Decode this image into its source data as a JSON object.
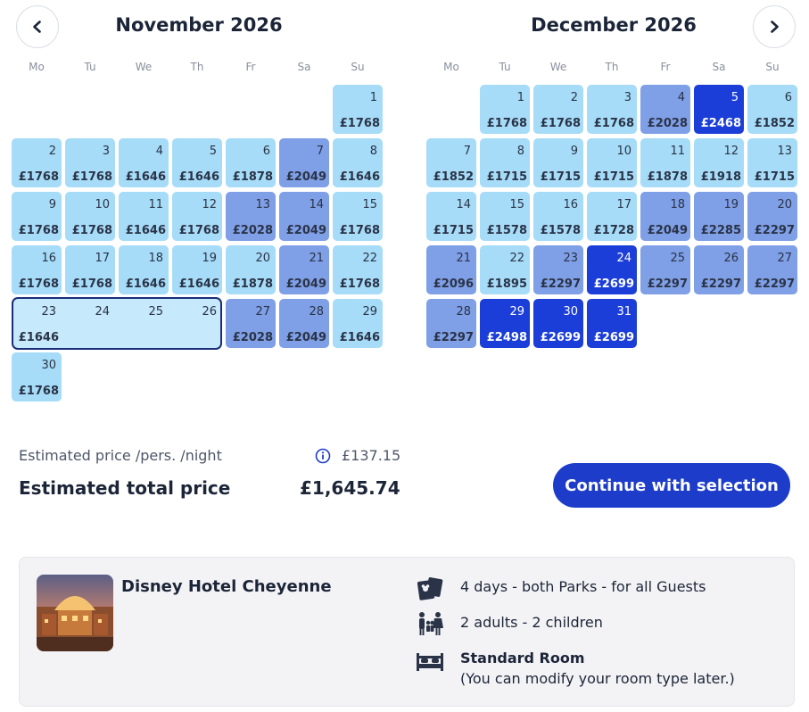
{
  "calendar": {
    "weekdays": [
      "Mo",
      "Tu",
      "We",
      "Th",
      "Fr",
      "Sa",
      "Su"
    ],
    "months": [
      {
        "title": "November 2026",
        "first_weekday_index": 6,
        "days": [
          {
            "day": "1",
            "price": "£1768",
            "tier": 1
          },
          {
            "day": "2",
            "price": "£1768",
            "tier": 1
          },
          {
            "day": "3",
            "price": "£1768",
            "tier": 1
          },
          {
            "day": "4",
            "price": "£1646",
            "tier": 1
          },
          {
            "day": "5",
            "price": "£1646",
            "tier": 1
          },
          {
            "day": "6",
            "price": "£1878",
            "tier": 1
          },
          {
            "day": "7",
            "price": "£2049",
            "tier": 2
          },
          {
            "day": "8",
            "price": "£1646",
            "tier": 1
          },
          {
            "day": "9",
            "price": "£1768",
            "tier": 1
          },
          {
            "day": "10",
            "price": "£1768",
            "tier": 1
          },
          {
            "day": "11",
            "price": "£1646",
            "tier": 1
          },
          {
            "day": "12",
            "price": "£1768",
            "tier": 1
          },
          {
            "day": "13",
            "price": "£2028",
            "tier": 2
          },
          {
            "day": "14",
            "price": "£2049",
            "tier": 2
          },
          {
            "day": "15",
            "price": "£1768",
            "tier": 1
          },
          {
            "day": "16",
            "price": "£1768",
            "tier": 1
          },
          {
            "day": "17",
            "price": "£1768",
            "tier": 1
          },
          {
            "day": "18",
            "price": "£1646",
            "tier": 1
          },
          {
            "day": "19",
            "price": "£1646",
            "tier": 1
          },
          {
            "day": "20",
            "price": "£1878",
            "tier": 1
          },
          {
            "day": "21",
            "price": "£2049",
            "tier": 2
          },
          {
            "day": "22",
            "price": "£1768",
            "tier": 1
          },
          {
            "day": "23",
            "price": "£1646",
            "tier": 0
          },
          {
            "day": "24",
            "price": "",
            "tier": 0
          },
          {
            "day": "25",
            "price": "",
            "tier": 0
          },
          {
            "day": "26",
            "price": "",
            "tier": 0
          },
          {
            "day": "27",
            "price": "£2028",
            "tier": 2
          },
          {
            "day": "28",
            "price": "£2049",
            "tier": 2
          },
          {
            "day": "29",
            "price": "£1646",
            "tier": 1
          },
          {
            "day": "30",
            "price": "£1768",
            "tier": 1
          }
        ]
      },
      {
        "title": "December 2026",
        "first_weekday_index": 1,
        "days": [
          {
            "day": "1",
            "price": "£1768",
            "tier": 1
          },
          {
            "day": "2",
            "price": "£1768",
            "tier": 1
          },
          {
            "day": "3",
            "price": "£1768",
            "tier": 1
          },
          {
            "day": "4",
            "price": "£2028",
            "tier": 2
          },
          {
            "day": "5",
            "price": "£2468",
            "tier": 3
          },
          {
            "day": "6",
            "price": "£1852",
            "tier": 1
          },
          {
            "day": "7",
            "price": "£1852",
            "tier": 1
          },
          {
            "day": "8",
            "price": "£1715",
            "tier": 1
          },
          {
            "day": "9",
            "price": "£1715",
            "tier": 1
          },
          {
            "day": "10",
            "price": "£1715",
            "tier": 1
          },
          {
            "day": "11",
            "price": "£1878",
            "tier": 1
          },
          {
            "day": "12",
            "price": "£1918",
            "tier": 1
          },
          {
            "day": "13",
            "price": "£1715",
            "tier": 1
          },
          {
            "day": "14",
            "price": "£1715",
            "tier": 1
          },
          {
            "day": "15",
            "price": "£1578",
            "tier": 1
          },
          {
            "day": "16",
            "price": "£1578",
            "tier": 1
          },
          {
            "day": "17",
            "price": "£1728",
            "tier": 1
          },
          {
            "day": "18",
            "price": "£2049",
            "tier": 2
          },
          {
            "day": "19",
            "price": "£2285",
            "tier": 2
          },
          {
            "day": "20",
            "price": "£2297",
            "tier": 2
          },
          {
            "day": "21",
            "price": "£2096",
            "tier": 2
          },
          {
            "day": "22",
            "price": "£1895",
            "tier": 1
          },
          {
            "day": "23",
            "price": "£2297",
            "tier": 2
          },
          {
            "day": "24",
            "price": "£2699",
            "tier": 3
          },
          {
            "day": "25",
            "price": "£2297",
            "tier": 2
          },
          {
            "day": "26",
            "price": "£2297",
            "tier": 2
          },
          {
            "day": "27",
            "price": "£2297",
            "tier": 2
          },
          {
            "day": "28",
            "price": "£2297",
            "tier": 2
          },
          {
            "day": "29",
            "price": "£2498",
            "tier": 3
          },
          {
            "day": "30",
            "price": "£2699",
            "tier": 3
          },
          {
            "day": "31",
            "price": "£2699",
            "tier": 3
          }
        ]
      }
    ],
    "selection": {
      "month": "November 2026",
      "start": "23",
      "end": "26"
    },
    "colors": {
      "low": "#a6dcf8",
      "mid": "#7f9fe6",
      "high": "#1b3ed8",
      "selected_range": "#c6e9fb",
      "selected_border": "#1a2e78"
    }
  },
  "pricing": {
    "per_night_label": "Estimated price /pers. /night",
    "per_night_value": "£137.15",
    "total_label": "Estimated total price",
    "total_value": "£1,645.74"
  },
  "cta": {
    "label": "Continue with selection",
    "color": "#1d3cc9"
  },
  "summary": {
    "hotel_name": "Disney Hotel Cheyenne",
    "tickets": "4 days - both Parks - for all Guests",
    "guests": "2 adults - 2 children",
    "room_title": "Standard Room",
    "room_note": "(You can modify your room type later.)",
    "icons": [
      "ticket-icon",
      "family-icon",
      "bed-icon",
      "info-icon"
    ]
  }
}
